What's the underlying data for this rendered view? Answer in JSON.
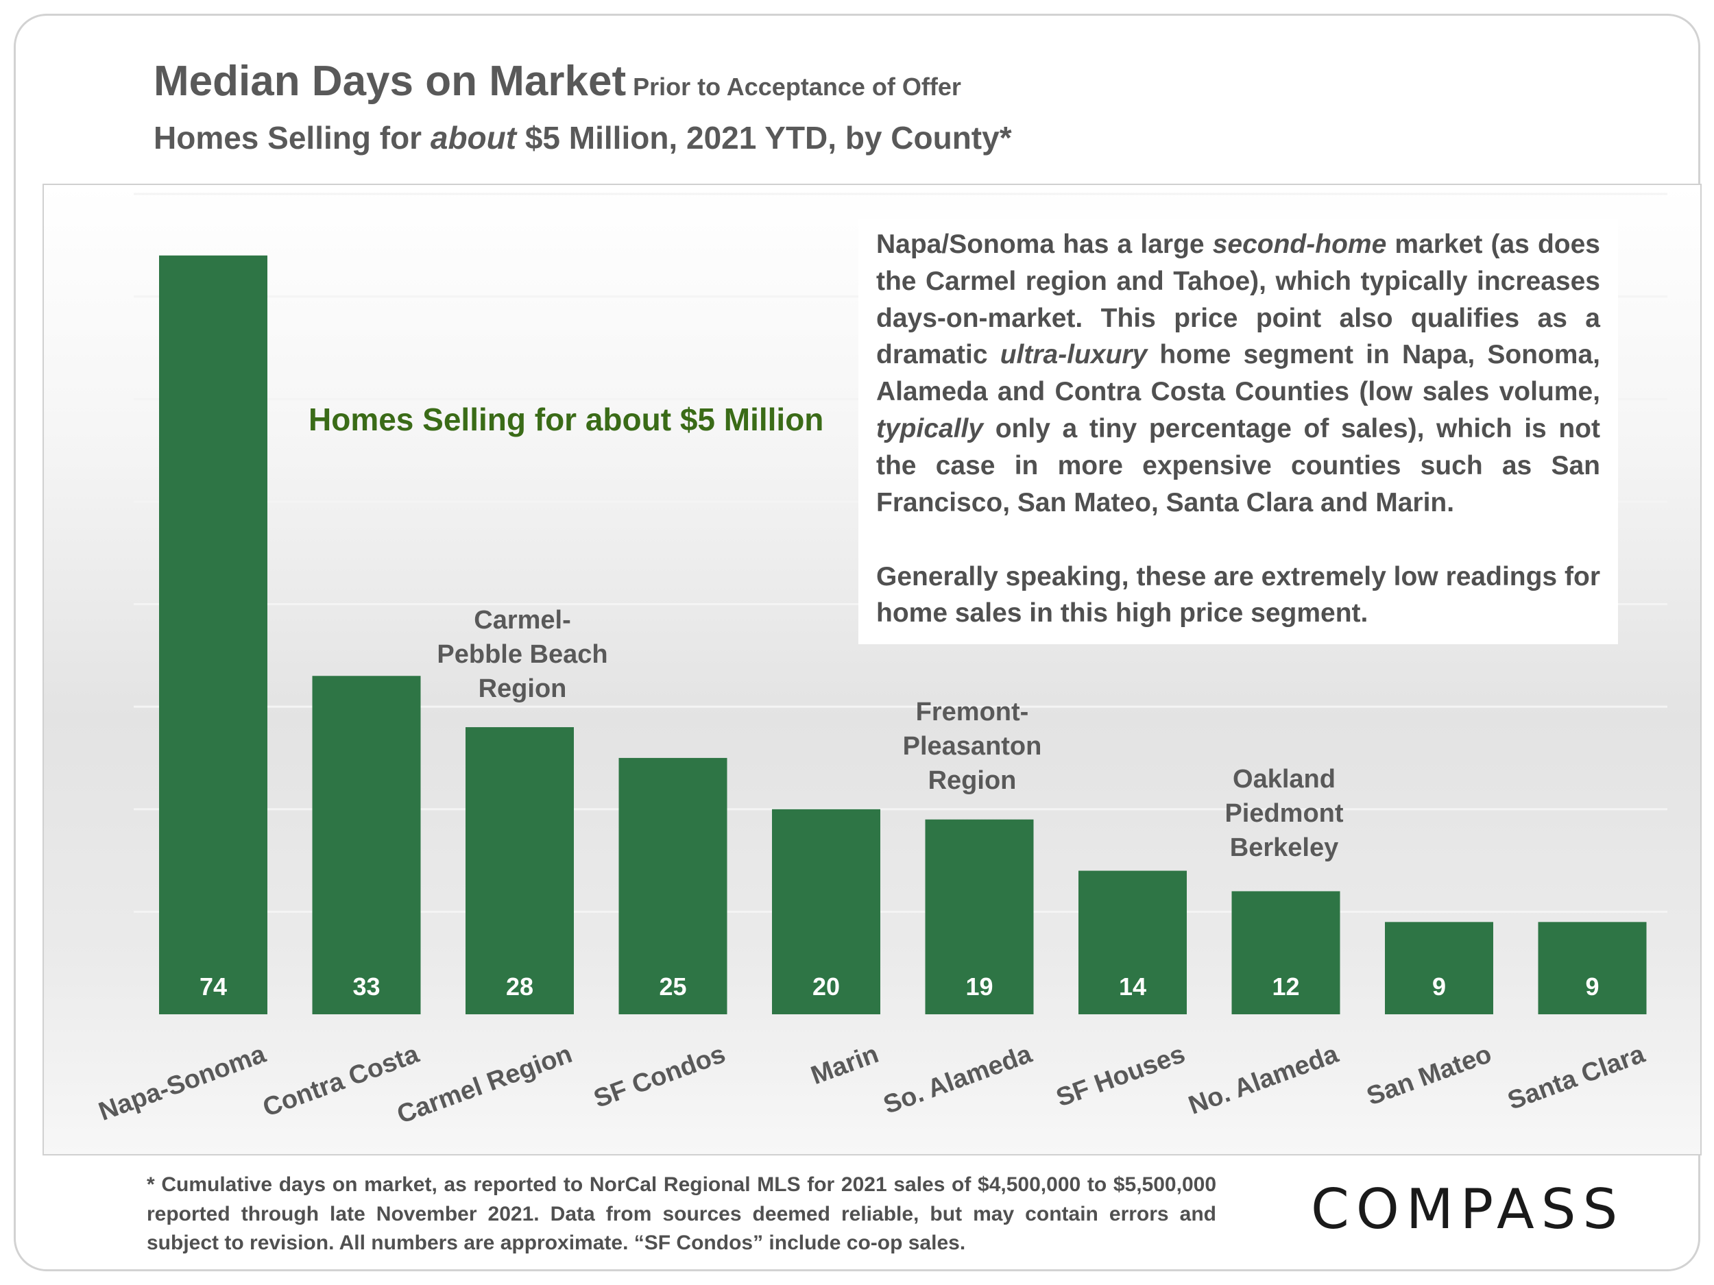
{
  "title": {
    "main": "Median Days on Market",
    "sub": "Prior to Acceptance of Offer",
    "line2_before": "Homes Selling for ",
    "line2_italic": "about",
    "line2_after": " $5 Million, 2021 YTD, by County*"
  },
  "chart_data": {
    "type": "bar",
    "categories": [
      "Napa-Sonoma",
      "Contra Costa",
      "Carmel Region",
      "SF Condos",
      "Marin",
      "So. Alameda",
      "SF Houses",
      "No. Alameda",
      "San Mateo",
      "Santa Clara"
    ],
    "values": [
      74,
      33,
      28,
      25,
      20,
      19,
      14,
      12,
      9,
      9
    ],
    "ylim": [
      0,
      80
    ],
    "grid": true,
    "xlabel": "",
    "ylabel": "",
    "bar_color": "#2e7545"
  },
  "inline_label": "Homes Selling for about $5 Million",
  "region_labels": {
    "carmel": [
      "Carmel-",
      "Pebble Beach",
      "Region"
    ],
    "fremont": [
      "Fremont-",
      "Pleasanton",
      "Region"
    ],
    "oakland": [
      "Oakland",
      "Piedmont",
      "Berkeley"
    ]
  },
  "note": {
    "p1": {
      "t1": "Napa/Sonoma has a large ",
      "i1": "second-home",
      "t2": " market (as does the Carmel region and Tahoe), which typically increases days-on-market. This price point also qualifies as a dramatic ",
      "i2": "ultra-luxury",
      "t3": " home segment in Napa, Sonoma, Alameda and Contra Costa Counties (low sales volume, ",
      "i3": "typically",
      "t4": " only a tiny percentage of sales), which is not the case in more expensive counties such as San Francisco, San Mateo, Santa Clara and Marin."
    },
    "p2": "Generally speaking, these are extremely low readings for home sales in this high price segment."
  },
  "footnote": "* Cumulative days on market, as reported to NorCal Regional MLS for 2021 sales of $4,500,000 to $5,500,000 reported through late November 2021. Data from sources deemed reliable, but may contain errors and subject to revision. All numbers are approximate. “SF Condos” include co-op sales.",
  "logo": "COMPASS",
  "colors": {
    "title": "#595959",
    "bar": "#2e7545",
    "inline_label": "#3a6b17"
  }
}
